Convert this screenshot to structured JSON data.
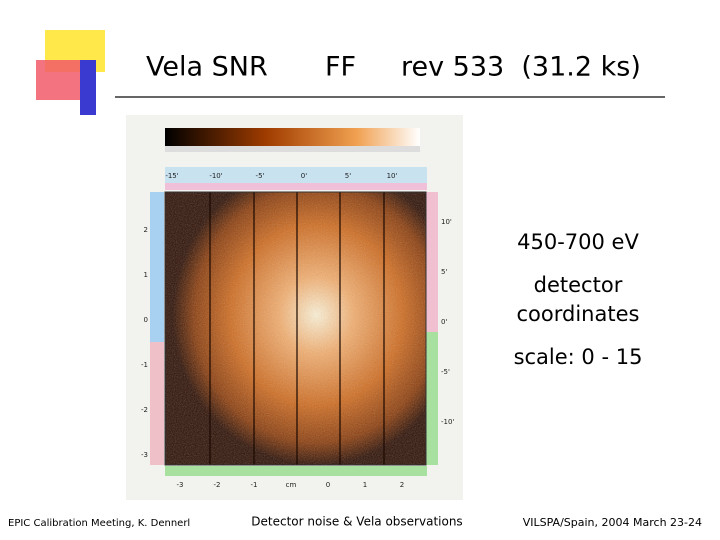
{
  "header": {
    "title_parts": [
      "Vela SNR",
      "FF",
      "rev 533  (31.2 ks)"
    ]
  },
  "image": {
    "top_ticks": [
      "-15'",
      "-10'",
      "-5'",
      "0'",
      "5'",
      "10'"
    ],
    "bottom_ticks": [
      "-3",
      "-2",
      "-1",
      "cm",
      "0",
      "1",
      "2"
    ],
    "left_ticks": [
      "2",
      "1",
      "0",
      "-1",
      "-2",
      "-3"
    ],
    "right_ticks": [
      "10'",
      "5'",
      "0'",
      "-5'",
      "-10'"
    ]
  },
  "notes": [
    "450-700 eV",
    "detector",
    "coordinates",
    "scale: 0 - 15"
  ],
  "footer": {
    "left": "EPIC Calibration Meeting, K. Dennerl",
    "center": "Detector noise & Vela observations",
    "right": "VILSPA/Spain, 2004 March 23-24"
  }
}
